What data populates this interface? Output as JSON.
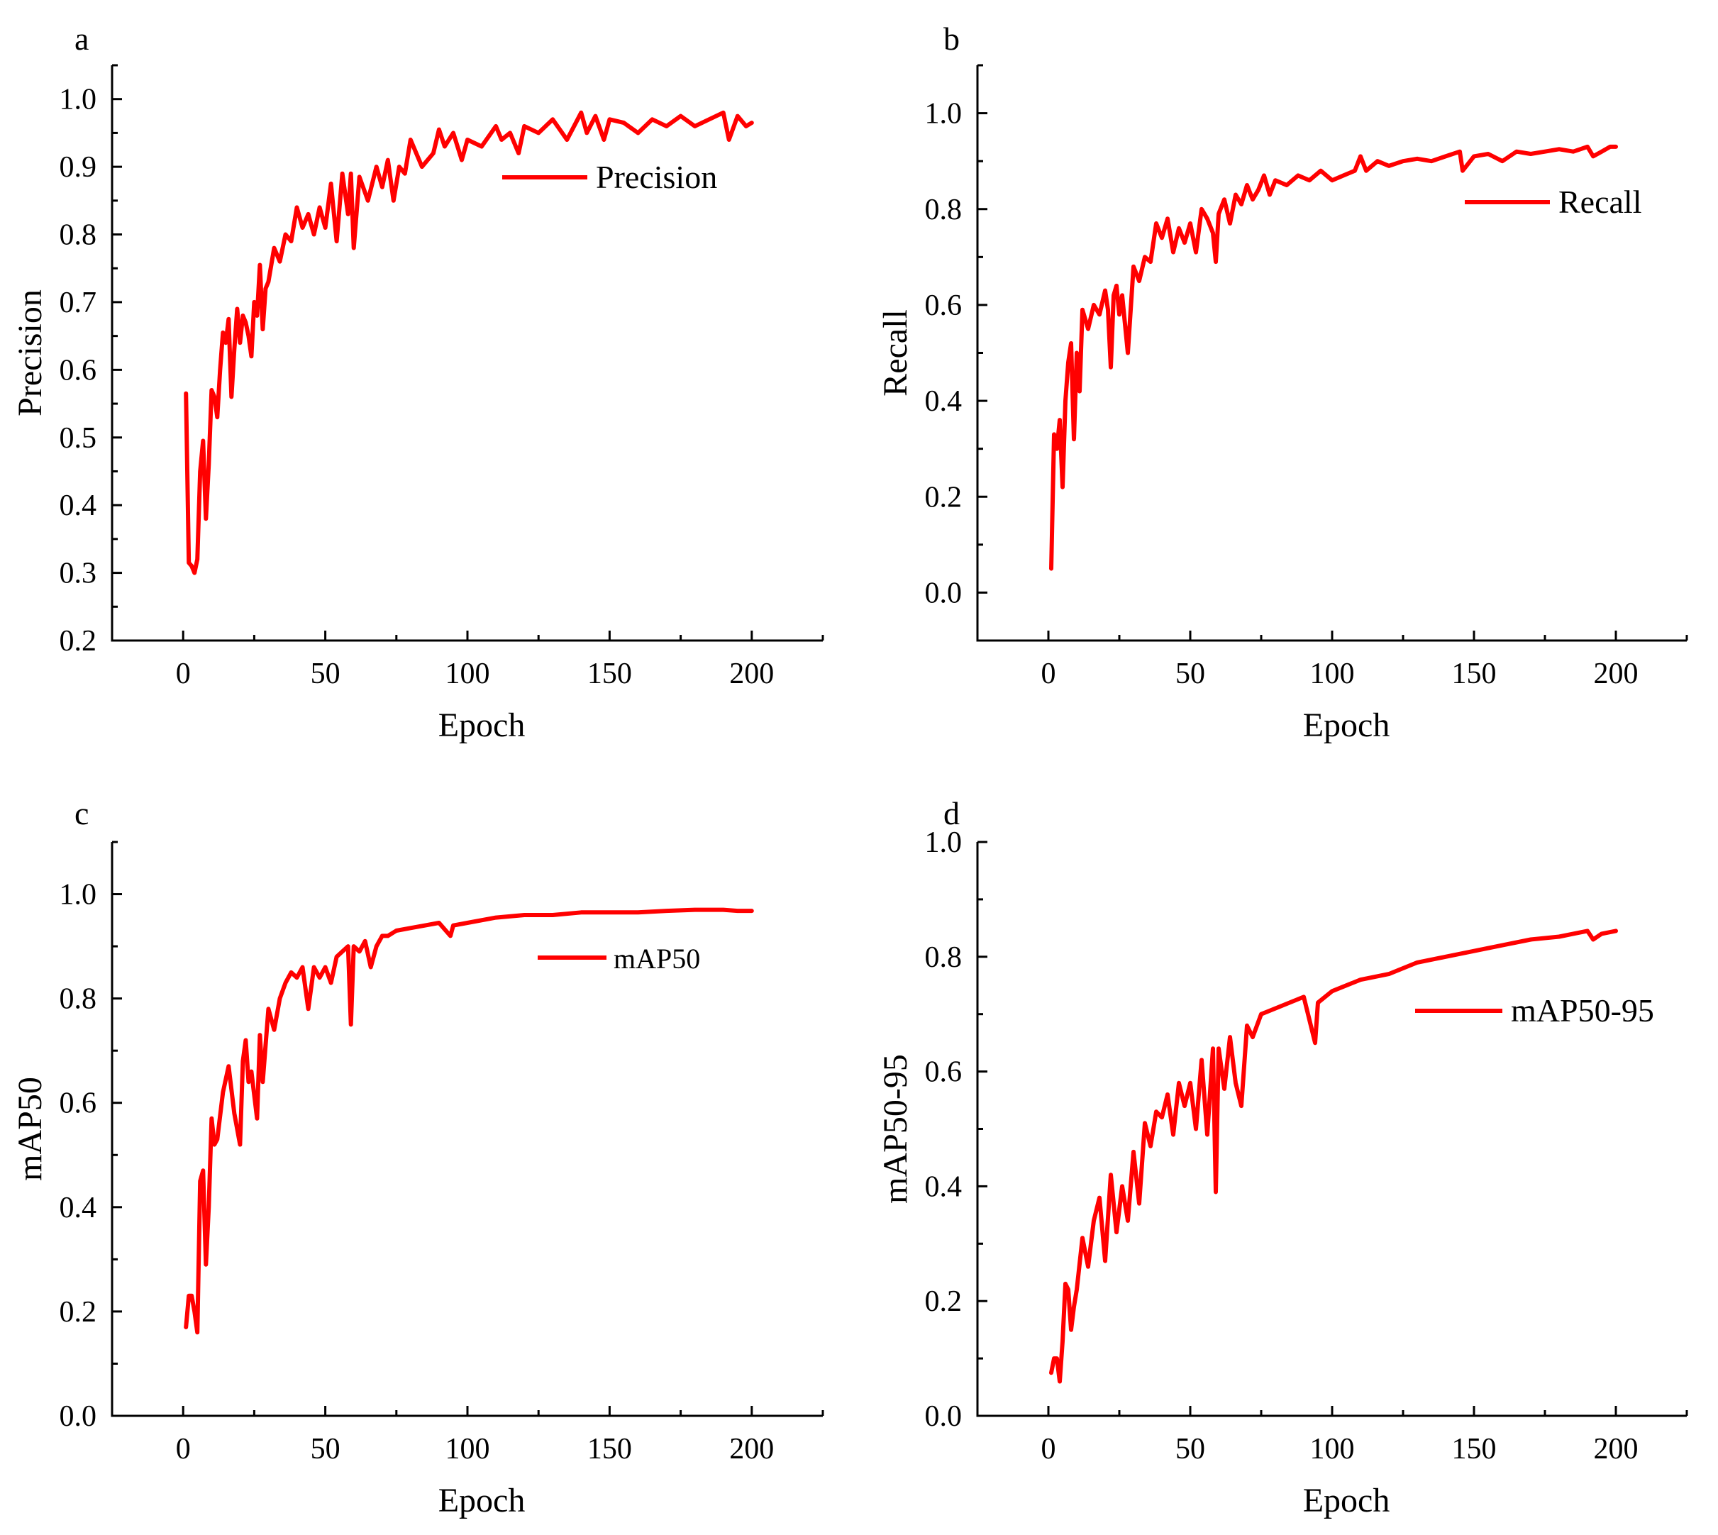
{
  "figure": {
    "line_color": "#ff0000",
    "panels_layout": "2x2"
  },
  "chart_data": [
    {
      "type": "line",
      "panel_label": "a",
      "title": "",
      "xlabel": "Epoch",
      "ylabel": "Precision",
      "xlim": [
        -25,
        225
      ],
      "ylim": [
        0.2,
        1.05
      ],
      "xticks": [
        0,
        50,
        100,
        150,
        200
      ],
      "yticks": [
        0.2,
        0.3,
        0.4,
        0.5,
        0.6,
        0.7,
        0.8,
        0.9,
        1.0
      ],
      "ytick_labels": [
        "0.2",
        "0.3",
        "0.4",
        "0.5",
        "0.6",
        "0.7",
        "0.8",
        "0.9",
        "1.0"
      ],
      "legend": "top-right",
      "series": [
        {
          "name": "Precision",
          "x": [
            1,
            2,
            3,
            4,
            5,
            6,
            7,
            8,
            9,
            10,
            11,
            12,
            13,
            14,
            15,
            16,
            17,
            18,
            19,
            20,
            21,
            22,
            23,
            24,
            25,
            26,
            27,
            28,
            29,
            30,
            32,
            34,
            36,
            38,
            40,
            42,
            44,
            46,
            48,
            50,
            52,
            54,
            56,
            58,
            59,
            60,
            62,
            65,
            68,
            70,
            72,
            74,
            76,
            78,
            80,
            84,
            88,
            90,
            92,
            95,
            98,
            100,
            105,
            110,
            112,
            115,
            118,
            120,
            125,
            130,
            135,
            140,
            142,
            145,
            148,
            150,
            155,
            160,
            165,
            170,
            175,
            180,
            185,
            190,
            192,
            195,
            198,
            200
          ],
          "values": [
            0.565,
            0.315,
            0.31,
            0.3,
            0.32,
            0.45,
            0.495,
            0.38,
            0.46,
            0.57,
            0.56,
            0.53,
            0.6,
            0.655,
            0.64,
            0.675,
            0.56,
            0.63,
            0.69,
            0.64,
            0.68,
            0.67,
            0.65,
            0.62,
            0.7,
            0.68,
            0.755,
            0.66,
            0.72,
            0.73,
            0.78,
            0.76,
            0.8,
            0.79,
            0.84,
            0.81,
            0.83,
            0.8,
            0.84,
            0.81,
            0.875,
            0.79,
            0.89,
            0.83,
            0.89,
            0.78,
            0.885,
            0.85,
            0.9,
            0.87,
            0.91,
            0.85,
            0.9,
            0.89,
            0.94,
            0.9,
            0.92,
            0.955,
            0.93,
            0.95,
            0.91,
            0.94,
            0.93,
            0.96,
            0.94,
            0.95,
            0.92,
            0.96,
            0.95,
            0.97,
            0.94,
            0.98,
            0.95,
            0.975,
            0.94,
            0.97,
            0.965,
            0.95,
            0.97,
            0.96,
            0.975,
            0.96,
            0.97,
            0.98,
            0.94,
            0.975,
            0.96,
            0.965
          ]
        }
      ]
    },
    {
      "type": "line",
      "panel_label": "b",
      "title": "",
      "xlabel": "Epoch",
      "ylabel": "Recall",
      "xlim": [
        -25,
        225
      ],
      "ylim": [
        -0.1,
        1.1
      ],
      "xticks": [
        0,
        50,
        100,
        150,
        200
      ],
      "yticks": [
        0.0,
        0.2,
        0.4,
        0.6,
        0.8,
        1.0
      ],
      "ytick_labels": [
        "0.0",
        "0.2",
        "0.4",
        "0.6",
        "0.8",
        "1.0"
      ],
      "legend": "top-right",
      "series": [
        {
          "name": "Recall",
          "x": [
            1,
            2,
            3,
            4,
            5,
            6,
            7,
            8,
            9,
            10,
            11,
            12,
            14,
            16,
            18,
            20,
            21,
            22,
            23,
            24,
            25,
            26,
            28,
            30,
            32,
            34,
            36,
            38,
            40,
            42,
            44,
            46,
            48,
            50,
            52,
            54,
            56,
            58,
            59,
            60,
            62,
            64,
            66,
            68,
            70,
            72,
            74,
            76,
            78,
            80,
            84,
            88,
            92,
            96,
            100,
            104,
            108,
            110,
            112,
            116,
            120,
            125,
            130,
            135,
            140,
            145,
            146,
            150,
            155,
            160,
            165,
            170,
            175,
            180,
            185,
            190,
            192,
            195,
            198,
            200
          ],
          "values": [
            0.05,
            0.33,
            0.3,
            0.36,
            0.22,
            0.4,
            0.48,
            0.52,
            0.32,
            0.5,
            0.42,
            0.59,
            0.55,
            0.6,
            0.58,
            0.63,
            0.59,
            0.47,
            0.62,
            0.64,
            0.58,
            0.62,
            0.5,
            0.68,
            0.65,
            0.7,
            0.69,
            0.77,
            0.74,
            0.78,
            0.71,
            0.76,
            0.73,
            0.77,
            0.71,
            0.8,
            0.78,
            0.75,
            0.69,
            0.79,
            0.82,
            0.77,
            0.83,
            0.81,
            0.85,
            0.82,
            0.84,
            0.87,
            0.83,
            0.86,
            0.85,
            0.87,
            0.86,
            0.88,
            0.86,
            0.87,
            0.88,
            0.91,
            0.88,
            0.9,
            0.89,
            0.9,
            0.905,
            0.9,
            0.91,
            0.92,
            0.88,
            0.91,
            0.915,
            0.9,
            0.92,
            0.915,
            0.92,
            0.925,
            0.92,
            0.93,
            0.91,
            0.92,
            0.93,
            0.93
          ]
        }
      ]
    },
    {
      "type": "line",
      "panel_label": "c",
      "title": "",
      "xlabel": "Epoch",
      "ylabel": "mAP50",
      "xlim": [
        -25,
        225
      ],
      "ylim": [
        0.0,
        1.1
      ],
      "xticks": [
        0,
        50,
        100,
        150,
        200
      ],
      "yticks": [
        0.0,
        0.2,
        0.4,
        0.6,
        0.8,
        1.0
      ],
      "ytick_labels": [
        "0.0",
        "0.2",
        "0.4",
        "0.6",
        "0.8",
        "1.0"
      ],
      "legend": "top-right",
      "series": [
        {
          "name": "mAP50",
          "x": [
            1,
            2,
            3,
            4,
            5,
            6,
            7,
            8,
            9,
            10,
            11,
            12,
            14,
            16,
            18,
            20,
            21,
            22,
            23,
            24,
            26,
            27,
            28,
            30,
            32,
            34,
            36,
            38,
            40,
            42,
            44,
            46,
            48,
            50,
            52,
            54,
            56,
            58,
            59,
            60,
            62,
            64,
            66,
            68,
            70,
            72,
            75,
            80,
            85,
            90,
            94,
            95,
            100,
            110,
            120,
            130,
            140,
            150,
            160,
            170,
            180,
            190,
            195,
            200
          ],
          "values": [
            0.17,
            0.23,
            0.23,
            0.2,
            0.16,
            0.45,
            0.47,
            0.29,
            0.4,
            0.57,
            0.52,
            0.53,
            0.62,
            0.67,
            0.58,
            0.52,
            0.68,
            0.72,
            0.64,
            0.66,
            0.57,
            0.73,
            0.64,
            0.78,
            0.74,
            0.8,
            0.83,
            0.85,
            0.84,
            0.86,
            0.78,
            0.86,
            0.84,
            0.86,
            0.83,
            0.88,
            0.89,
            0.9,
            0.75,
            0.9,
            0.89,
            0.91,
            0.86,
            0.9,
            0.92,
            0.92,
            0.93,
            0.935,
            0.94,
            0.945,
            0.92,
            0.94,
            0.945,
            0.955,
            0.96,
            0.96,
            0.965,
            0.965,
            0.965,
            0.968,
            0.97,
            0.97,
            0.968,
            0.968
          ]
        }
      ]
    },
    {
      "type": "line",
      "panel_label": "d",
      "title": "",
      "xlabel": "Epoch",
      "ylabel": "mAP50-95",
      "xlim": [
        -25,
        225
      ],
      "ylim": [
        0.0,
        1.0
      ],
      "xticks": [
        0,
        50,
        100,
        150,
        200
      ],
      "yticks": [
        0.0,
        0.2,
        0.4,
        0.6,
        0.8,
        1.0
      ],
      "ytick_labels": [
        "0.0",
        "0.2",
        "0.4",
        "0.6",
        "0.8",
        "1.0"
      ],
      "legend": "top-right",
      "series": [
        {
          "name": "mAP50-95",
          "x": [
            1,
            2,
            3,
            4,
            5,
            6,
            7,
            8,
            9,
            10,
            12,
            14,
            16,
            18,
            20,
            22,
            24,
            26,
            28,
            30,
            32,
            34,
            36,
            38,
            40,
            42,
            44,
            46,
            48,
            50,
            52,
            54,
            56,
            58,
            59,
            60,
            62,
            64,
            66,
            68,
            70,
            72,
            75,
            80,
            85,
            90,
            94,
            95,
            100,
            110,
            120,
            130,
            140,
            150,
            160,
            170,
            180,
            185,
            190,
            192,
            195,
            200
          ],
          "values": [
            0.075,
            0.1,
            0.1,
            0.06,
            0.13,
            0.23,
            0.22,
            0.15,
            0.19,
            0.22,
            0.31,
            0.26,
            0.34,
            0.38,
            0.27,
            0.42,
            0.32,
            0.4,
            0.34,
            0.46,
            0.37,
            0.51,
            0.47,
            0.53,
            0.52,
            0.56,
            0.49,
            0.58,
            0.54,
            0.58,
            0.5,
            0.62,
            0.49,
            0.64,
            0.39,
            0.64,
            0.57,
            0.66,
            0.58,
            0.54,
            0.68,
            0.66,
            0.7,
            0.71,
            0.72,
            0.73,
            0.65,
            0.72,
            0.74,
            0.76,
            0.77,
            0.79,
            0.8,
            0.81,
            0.82,
            0.83,
            0.835,
            0.84,
            0.845,
            0.83,
            0.84,
            0.845
          ]
        }
      ]
    }
  ]
}
